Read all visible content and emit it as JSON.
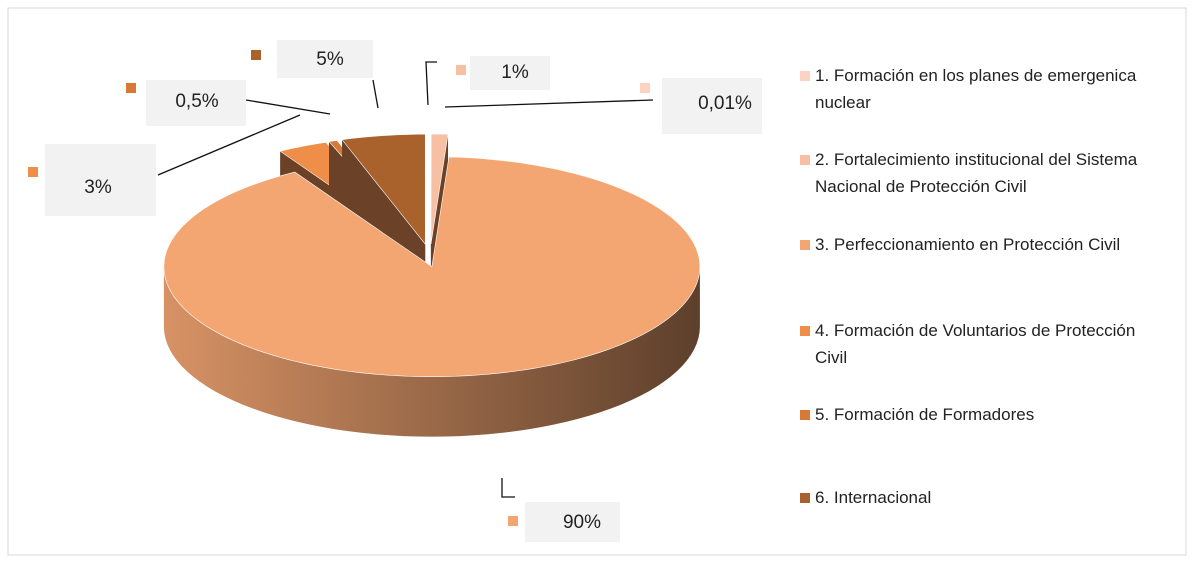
{
  "chart_data": {
    "type": "pie",
    "categories": [
      "1. Formación en los planes de emergenica nuclear",
      "2. Fortalecimiento institucional del Sistema Nacional de Protección Civil",
      "3. Perfeccionamiento en Protección Civil",
      "4. Formación de Voluntarios de Protección Civil",
      "5. Formación de Formadores",
      "6. Internacional"
    ],
    "values": [
      0.01,
      1,
      90,
      3,
      0.5,
      5
    ],
    "value_labels": [
      "0,01%",
      "1%",
      "90%",
      "3%",
      "0,5%",
      "5%"
    ],
    "colors": [
      "#fcd3c0",
      "#f8c0a3",
      "#f4a672",
      "#ee8e48",
      "#d67a36",
      "#a9622c"
    ],
    "legend": "right"
  }
}
